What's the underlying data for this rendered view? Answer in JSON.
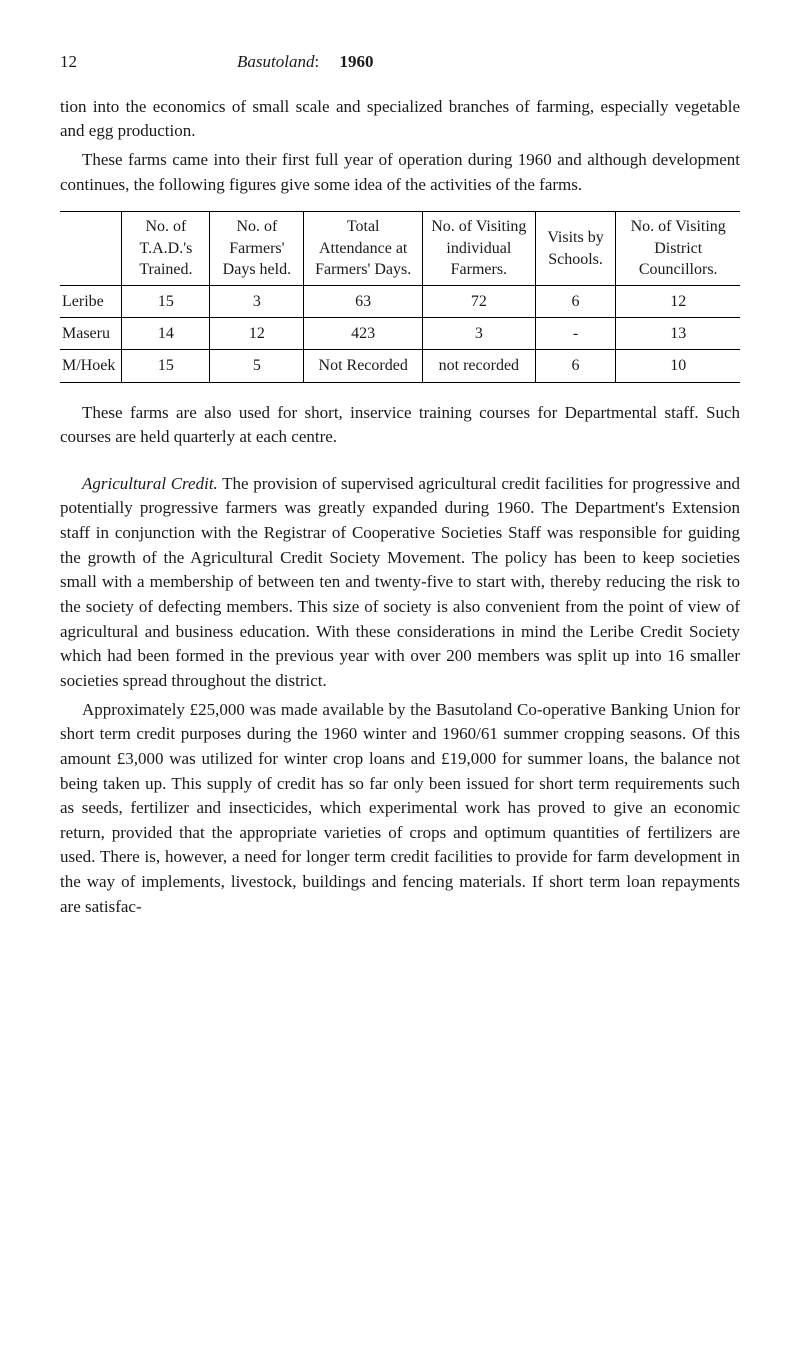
{
  "header": {
    "page_number": "12",
    "title_italic": "Basutoland",
    "title_sep": ":",
    "title_year": "1960"
  },
  "para1": "tion into the economics of small scale and specialized branches of farming, especially vegetable and egg production.",
  "para2": "These farms came into their first full year of operation during 1960 and although development continues, the following figures give some idea of the activities of the farms.",
  "table": {
    "columns": [
      "",
      "No. of T.A.D.'s Trained.",
      "No. of Farmers' Days held.",
      "Total Attendance at Farmers' Days.",
      "No. of Visiting individual Farmers.",
      "Visits by Schools.",
      "No. of Visiting District Councillors."
    ],
    "rows": [
      [
        "Leribe",
        "15",
        "3",
        "63",
        "72",
        "6",
        "12"
      ],
      [
        "Maseru",
        "14",
        "12",
        "423",
        "3",
        "-",
        "13"
      ],
      [
        "M/Hoek",
        "15",
        "5",
        "Not Recorded",
        "not recorded",
        "6",
        "10"
      ]
    ]
  },
  "para3": "These farms are also used for short, inservice training courses for Departmental staff. Such courses are held quarterly at each centre.",
  "para4_lead": "Agricultural Credit.",
  "para4": " The provision of supervised agricultural credit facilities for progressive and potentially progressive farmers was greatly expanded during 1960. The Department's Extension staff in conjunction with the Registrar of Cooperative Societies Staff was responsible for guiding the growth of the Agricultural Credit Society Movement. The policy has been to keep societies small with a membership of between ten and twenty-five to start with, thereby reducing the risk to the society of defecting members. This size of society is also convenient from the point of view of agricultural and business education. With these considerations in mind the Leribe Credit Society which had been formed in the previous year with over 200 members was split up into 16 smaller societies spread throughout the district.",
  "para5": "Approximately £25,000 was made available by the Basutoland Co-operative Banking Union for short term credit purposes during the 1960 winter and 1960/61 summer cropping seasons. Of this amount £3,000 was utilized for winter crop loans and £19,000 for summer loans, the balance not being taken up. This supply of credit has so far only been issued for short term requirements such as seeds, fertilizer and insecticides, which experimental work has proved to give an economic return, provided that the appropriate varieties of crops and optimum quantities of fertilizers are used. There is, however, a need for longer term credit facilities to provide for farm development in the way of implements, livestock, buildings and fencing materials. If short term loan repayments are satisfac-"
}
